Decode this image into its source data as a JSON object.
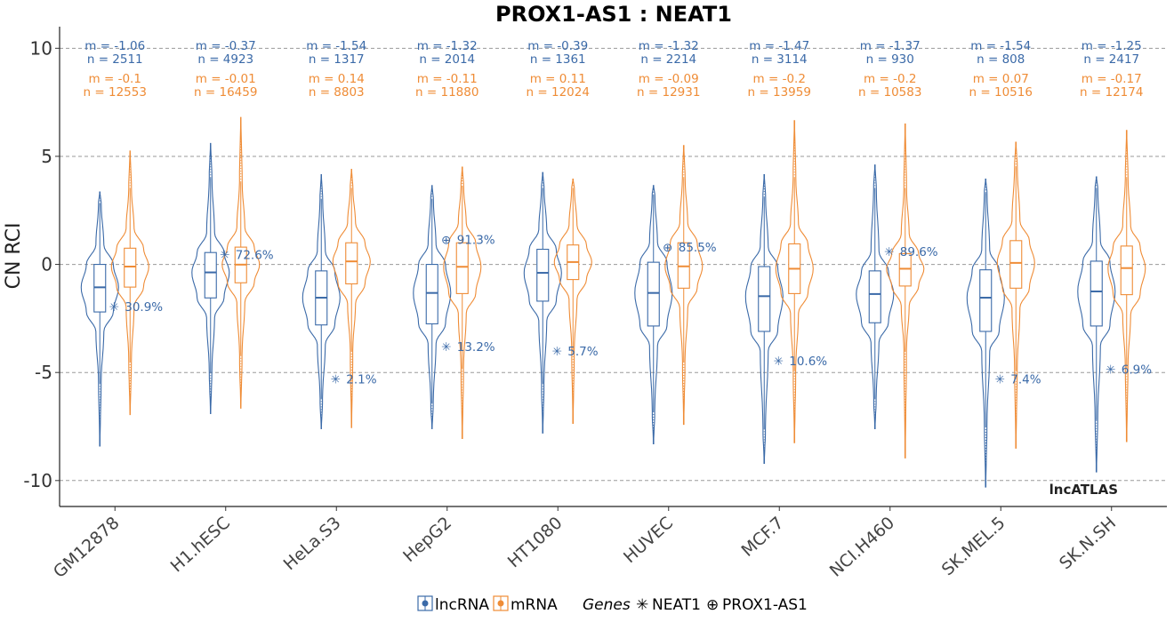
{
  "chart_data": {
    "type": "violin",
    "title": "PROX1-AS1 : NEAT1",
    "ylabel": "CN RCI",
    "xlabel": "",
    "ylim": [
      -11.2,
      11.0
    ],
    "yticks": [
      10,
      5,
      0,
      -5,
      -10
    ],
    "ytick_labels": [
      "10",
      "5",
      "0",
      "-5",
      "-10"
    ],
    "grid": "horizontal dashed",
    "watermark": "lncATLAS",
    "colors": {
      "lncRNA": "#3b6aa8",
      "mRNA": "#ef8c36"
    },
    "categories": [
      "GM12878",
      "H1.hESC",
      "HeLa.S3",
      "HepG2",
      "HT1080",
      "HUVEC",
      "MCF.7",
      "NCI.H460",
      "SK.MEL.5",
      "SK.N.SH"
    ],
    "series": [
      {
        "name": "lncRNA",
        "m_labels": [
          "m = -1.06",
          "m = -0.37",
          "m = -1.54",
          "m = -1.32",
          "m = -0.39",
          "m = -1.32",
          "m = -1.47",
          "m = -1.37",
          "m = -1.54",
          "m = -1.25"
        ],
        "n_labels": [
          "n = 2511",
          "n = 4923",
          "n = 1317",
          "n = 2014",
          "n = 1361",
          "n = 2214",
          "n = 3114",
          "n = 930",
          "n = 808",
          "n = 2417"
        ],
        "median": [
          -1.06,
          -0.37,
          -1.54,
          -1.32,
          -0.39,
          -1.32,
          -1.47,
          -1.37,
          -1.54,
          -1.25
        ],
        "q1": [
          -2.2,
          -1.55,
          -2.8,
          -2.75,
          -1.7,
          -2.85,
          -3.1,
          -2.7,
          -3.1,
          -2.85
        ],
        "q3": [
          0.0,
          0.55,
          -0.3,
          0.0,
          0.7,
          0.1,
          -0.1,
          -0.3,
          -0.25,
          0.15
        ],
        "wlo": [
          -5.5,
          -5.0,
          -6.2,
          -6.4,
          -5.5,
          -6.8,
          -7.6,
          -6.2,
          -7.5,
          -7.2
        ],
        "whi": [
          2.8,
          4.0,
          3.0,
          3.0,
          3.5,
          3.2,
          3.1,
          3.5,
          3.3,
          3.5
        ],
        "min": [
          -8.4,
          -6.9,
          -7.6,
          -7.6,
          -7.8,
          -8.3,
          -9.2,
          -7.6,
          -10.3,
          -9.6
        ],
        "max": [
          3.35,
          5.6,
          4.15,
          3.65,
          4.25,
          3.65,
          4.15,
          4.6,
          3.95,
          4.05
        ]
      },
      {
        "name": "mRNA",
        "m_labels": [
          "m = -0.1",
          "m = -0.01",
          "m = 0.14",
          "m = -0.11",
          "m = 0.11",
          "m = -0.09",
          "m = -0.2",
          "m = -0.2",
          "m = 0.07",
          "m = -0.17"
        ],
        "n_labels": [
          "n = 12553",
          "n = 16459",
          "n = 8803",
          "n = 11880",
          "n = 12024",
          "n = 12931",
          "n = 13959",
          "n = 10583",
          "n = 10516",
          "n = 12174"
        ],
        "median": [
          -0.1,
          -0.01,
          0.14,
          -0.11,
          0.11,
          -0.09,
          -0.2,
          -0.2,
          0.07,
          -0.17
        ],
        "q1": [
          -1.05,
          -0.85,
          -0.9,
          -1.35,
          -0.7,
          -1.1,
          -1.35,
          -1.0,
          -1.1,
          -1.4
        ],
        "q3": [
          0.75,
          0.8,
          1.0,
          1.0,
          0.9,
          1.0,
          0.95,
          0.5,
          1.1,
          0.85
        ],
        "wlo": [
          -4.5,
          -4.2,
          -4.0,
          -4.8,
          -4.0,
          -4.5,
          -4.9,
          -4.0,
          -4.9,
          -4.8
        ],
        "whi": [
          3.5,
          3.8,
          3.5,
          3.6,
          3.5,
          4.0,
          4.0,
          3.5,
          4.5,
          4.0
        ],
        "min": [
          -6.95,
          -6.65,
          -7.55,
          -8.05,
          -7.35,
          -7.4,
          -8.25,
          -8.95,
          -8.5,
          -8.2
        ],
        "max": [
          5.25,
          6.8,
          4.4,
          4.5,
          3.95,
          5.5,
          6.65,
          6.5,
          5.65,
          6.2
        ]
      }
    ],
    "genes": {
      "NEAT1": {
        "symbol": "✳",
        "values": [
          -1.95,
          0.45,
          -5.3,
          -3.8,
          -4.0,
          null,
          -4.45,
          0.6,
          -5.3,
          -4.85
        ],
        "labels": [
          "30.9%",
          "72.6%",
          "2.1%",
          "13.2%",
          "5.7%",
          "",
          "10.6%",
          "89.6%",
          "7.4%",
          "6.9%"
        ]
      },
      "PROX1-AS1": {
        "symbol": "⊕",
        "values": [
          null,
          null,
          null,
          1.15,
          null,
          0.8,
          null,
          null,
          null,
          null
        ],
        "labels": [
          "",
          "",
          "",
          "91.3%",
          "",
          "85.5%",
          "",
          "",
          "",
          ""
        ]
      }
    },
    "legend": {
      "position": "bottom",
      "items": [
        {
          "label": "lncRNA",
          "color": "#3b6aa8"
        },
        {
          "label": "mRNA",
          "color": "#ef8c36"
        }
      ],
      "genes_title": "Genes",
      "gene_items": [
        {
          "symbol": "✳",
          "label": "NEAT1"
        },
        {
          "symbol": "⊕",
          "label": "PROX1-AS1"
        }
      ]
    }
  }
}
